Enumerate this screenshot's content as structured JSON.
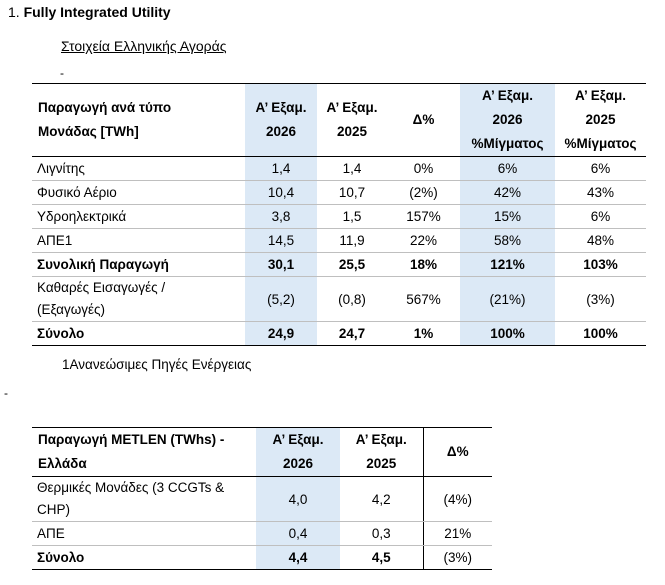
{
  "section": {
    "number": "1.",
    "title": "Fully Integrated Utility"
  },
  "subtitle": "Στοιχεία Ελληνικής Αγοράς",
  "dash_text": "-",
  "table1": {
    "headers": [
      [
        "Παραγωγή ανά τύπο",
        "Μονάδας [TWh]"
      ],
      [
        "Α’ Εξαμ.",
        "2026"
      ],
      [
        "Α’ Εξαμ.",
        "2025"
      ],
      [
        "Δ%"
      ],
      [
        "Α’ Εξαμ.",
        "2026",
        "%Μίγματος"
      ],
      [
        "Α’ Εξαμ.",
        "2025",
        "%Μίγματος"
      ]
    ],
    "rows": [
      {
        "cells": [
          "Λιγνίτης",
          "1,4",
          "1,4",
          "0%",
          "6%",
          "6%"
        ]
      },
      {
        "cells": [
          "Φυσικό Αέριο",
          "10,4",
          "10,7",
          "(2%)",
          "42%",
          "43%"
        ]
      },
      {
        "cells": [
          "Υδροηλεκτρικά",
          "3,8",
          "1,5",
          "157%",
          "15%",
          "6%"
        ]
      },
      {
        "cells": [
          "ΑΠΕ1",
          "14,5",
          "11,9",
          "22%",
          "58%",
          "48%"
        ]
      },
      {
        "cells": [
          "Συνολική Παραγωγή",
          "30,1",
          "25,5",
          "18%",
          "121%",
          "103%"
        ]
      },
      {
        "cells": [
          "Καθαρές Εισαγωγές /",
          "(Εξαγωγές)",
          "(5,2)",
          "(0,8)",
          "567%",
          "(21%)",
          "(3%)"
        ]
      },
      {
        "cells": [
          "Σύνολο",
          "24,9",
          "24,7",
          "1%",
          "100%",
          "100%"
        ]
      }
    ],
    "footnote": "1Ανανεώσιμες Πηγές Ενέργειας"
  },
  "table2": {
    "headers": [
      [
        "Παραγωγή METLEN (TWhs) -",
        "Ελλάδα"
      ],
      [
        "Α’ Εξαμ.",
        "2026"
      ],
      [
        "Α’ Εξαμ.",
        "2025"
      ],
      [
        "Δ%"
      ]
    ],
    "rows": [
      {
        "cells": [
          "Θερμικές Μονάδες (3 CCGTs &",
          "CHP)",
          "4,0",
          "4,2",
          "(4%)"
        ]
      },
      {
        "cells": [
          "ΑΠΕ",
          "0,4",
          "0,3",
          "21%"
        ]
      },
      {
        "cells": [
          "Σύνολο",
          "4,4",
          "4,5",
          "(3%)"
        ]
      }
    ]
  }
}
